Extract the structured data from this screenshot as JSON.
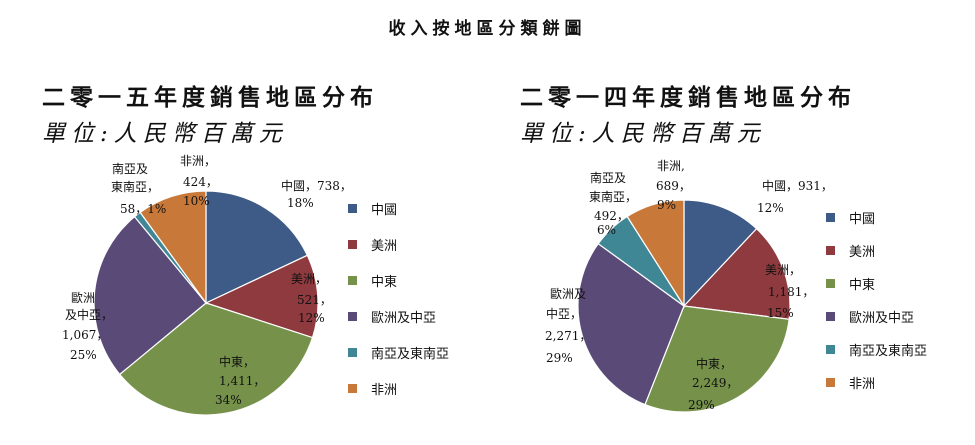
{
  "page_title": "收入按地區分類餅圖",
  "chart_data": [
    {
      "type": "pie",
      "title": "二零一五年度銷售地區分布",
      "unit": "單位:人民幣百萬元",
      "slices": [
        {
          "name": "中國",
          "value": 738,
          "percent": 18,
          "color": "#3e5a86"
        },
        {
          "name": "美洲",
          "value": 521,
          "percent": 12,
          "color": "#8e3a3e"
        },
        {
          "name": "中東",
          "value": 1411,
          "percent": 34,
          "color": "#76924a"
        },
        {
          "name": "歐洲及中亞",
          "value": 1067,
          "percent": 25,
          "color": "#5a4a78"
        },
        {
          "name": "南亞及東南亞",
          "value": 58,
          "percent": 1,
          "color": "#3f8795"
        },
        {
          "name": "非洲",
          "value": 424,
          "percent": 10,
          "color": "#c8793a"
        }
      ],
      "labels": [
        [
          "中國，738，",
          "18%"
        ],
        [
          "美洲，",
          "521，",
          "12%"
        ],
        [
          "中東，",
          "1,411，",
          "34%"
        ],
        [
          "歐洲",
          "及中亞，",
          "1,067，",
          "25%"
        ],
        [
          "南亞及",
          "東南亞，",
          "58，1%"
        ],
        [
          "非洲，",
          "424，",
          "10%"
        ]
      ],
      "legend": [
        "中國",
        "美洲",
        "中東",
        "歐洲及中亞",
        "南亞及東南亞",
        "非洲"
      ]
    },
    {
      "type": "pie",
      "title": "二零一四年度銷售地區分布",
      "unit": "單位:人民幣百萬元",
      "slices": [
        {
          "name": "中國",
          "value": 931,
          "percent": 12,
          "color": "#3e5a86"
        },
        {
          "name": "美洲",
          "value": 1181,
          "percent": 15,
          "color": "#8e3a3e"
        },
        {
          "name": "中東",
          "value": 2249,
          "percent": 29,
          "color": "#76924a"
        },
        {
          "name": "歐洲及中亞",
          "value": 2271,
          "percent": 29,
          "color": "#5a4a78"
        },
        {
          "name": "南亞及東南亞",
          "value": 492,
          "percent": 6,
          "color": "#3f8795"
        },
        {
          "name": "非洲",
          "value": 689,
          "percent": 9,
          "color": "#c8793a"
        }
      ],
      "labels": [
        [
          "中國，931，",
          "12%"
        ],
        [
          "美洲，",
          "1,181，",
          "15%"
        ],
        [
          "中東，",
          "2,249，",
          "29%"
        ],
        [
          "歐洲及",
          "中亞，",
          "2,271，",
          "29%"
        ],
        [
          "南亞及",
          "東南亞，",
          "492，",
          "6%"
        ],
        [
          "非洲,",
          "689，",
          "9%"
        ]
      ],
      "legend": [
        "中國",
        "美洲",
        "中東",
        "歐洲及中亞",
        "南亞及東南亞",
        "非洲"
      ]
    }
  ]
}
